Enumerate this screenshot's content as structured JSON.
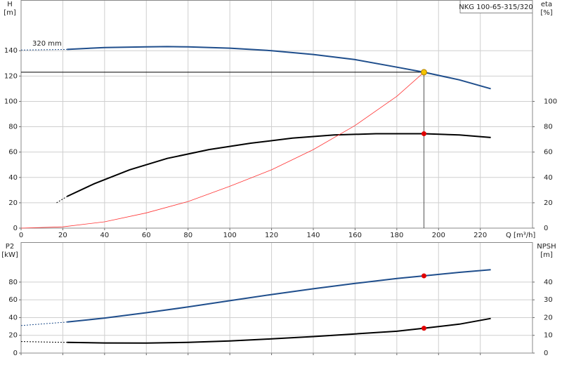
{
  "chart_data": [
    {
      "type": "line",
      "title": "NKG 100-65-315/320",
      "annotation": "320 mm",
      "y_label": [
        "H",
        "[m]"
      ],
      "y2_label": [
        "eta",
        "[%]"
      ],
      "x_label": "Q [m³/h]",
      "xlim": [
        0,
        245
      ],
      "xticks": [
        0,
        20,
        40,
        60,
        80,
        100,
        120,
        140,
        160,
        180,
        200,
        220
      ],
      "x_tick_labels": true,
      "ylim": [
        0,
        180
      ],
      "yticks": [
        0,
        20,
        40,
        60,
        80,
        100,
        120,
        140
      ],
      "y2lim": [
        0,
        180
      ],
      "y2ticks": [
        0,
        20,
        40,
        60,
        80,
        100
      ],
      "grid": true,
      "series": [
        {
          "color": "#1f4e8c",
          "width": 2,
          "dashed": true,
          "x": [
            0,
            22
          ],
          "values": [
            140.5,
            141
          ]
        },
        {
          "color": "#1f4e8c",
          "width": 2,
          "x": [
            22,
            40,
            60,
            70,
            80,
            100,
            120,
            140,
            160,
            180,
            193,
            210,
            225
          ],
          "values": [
            141,
            142.5,
            143,
            143.2,
            143,
            142,
            140,
            137,
            133,
            127,
            123,
            117,
            110
          ]
        },
        {
          "color": "#000000",
          "width": 2,
          "dashed": true,
          "axis": "y2",
          "x": [
            17,
            22
          ],
          "values": [
            20,
            25
          ]
        },
        {
          "color": "#000000",
          "width": 2,
          "axis": "y2",
          "x": [
            22,
            35,
            52,
            70,
            90,
            110,
            130,
            150,
            170,
            193,
            210,
            225
          ],
          "values": [
            25,
            35,
            46,
            55,
            62,
            67,
            71,
            73.5,
            74.5,
            74.5,
            73.5,
            71.5
          ]
        },
        {
          "color": "#ff3333",
          "width": 0.8,
          "x": [
            0,
            20,
            40,
            60,
            80,
            100,
            120,
            140,
            160,
            180,
            193
          ],
          "values": [
            0,
            1,
            5,
            12,
            21,
            33,
            46,
            62,
            81,
            104,
            123
          ]
        }
      ],
      "duty_point": {
        "x": 193,
        "y": 123,
        "color": "#f5c400"
      },
      "markers": [
        {
          "x": 193,
          "y": 74.5,
          "axis": "y2",
          "color": "#e00000"
        }
      ]
    },
    {
      "type": "line",
      "y_label": [
        "P2",
        "[kW]"
      ],
      "y2_label": [
        "NPSH",
        "[m]"
      ],
      "xlim": [
        0,
        245
      ],
      "xticks": [
        0,
        20,
        40,
        60,
        80,
        100,
        120,
        140,
        160,
        180,
        200,
        220
      ],
      "x_tick_labels": false,
      "ylim": [
        0,
        125
      ],
      "yticks": [
        0,
        20,
        40,
        60,
        80
      ],
      "y2lim": [
        0,
        62.5
      ],
      "y2ticks": [
        0,
        10,
        20,
        30,
        40
      ],
      "grid": true,
      "series": [
        {
          "color": "#1f4e8c",
          "width": 2,
          "dashed": true,
          "x": [
            0,
            22
          ],
          "values": [
            31,
            35
          ]
        },
        {
          "color": "#1f4e8c",
          "width": 2,
          "x": [
            22,
            40,
            60,
            80,
            100,
            120,
            140,
            160,
            180,
            193,
            210,
            225
          ],
          "values": [
            35,
            39.5,
            45.5,
            52,
            59,
            66,
            72.5,
            78.5,
            84,
            87,
            91,
            94
          ]
        },
        {
          "color": "#000000",
          "width": 2,
          "dashed": true,
          "axis": "y2",
          "x": [
            0,
            22
          ],
          "values": [
            6.5,
            6
          ]
        },
        {
          "color": "#000000",
          "width": 2,
          "axis": "y2",
          "x": [
            22,
            40,
            60,
            80,
            100,
            120,
            140,
            160,
            180,
            193,
            210,
            225
          ],
          "values": [
            6,
            5.7,
            5.6,
            6,
            6.8,
            8,
            9.3,
            10.8,
            12.3,
            14,
            16.3,
            19.5
          ]
        }
      ],
      "markers": [
        {
          "x": 193,
          "y": 87,
          "color": "#e00000"
        },
        {
          "x": 193,
          "y": 14,
          "axis": "y2",
          "color": "#e00000"
        }
      ]
    }
  ]
}
